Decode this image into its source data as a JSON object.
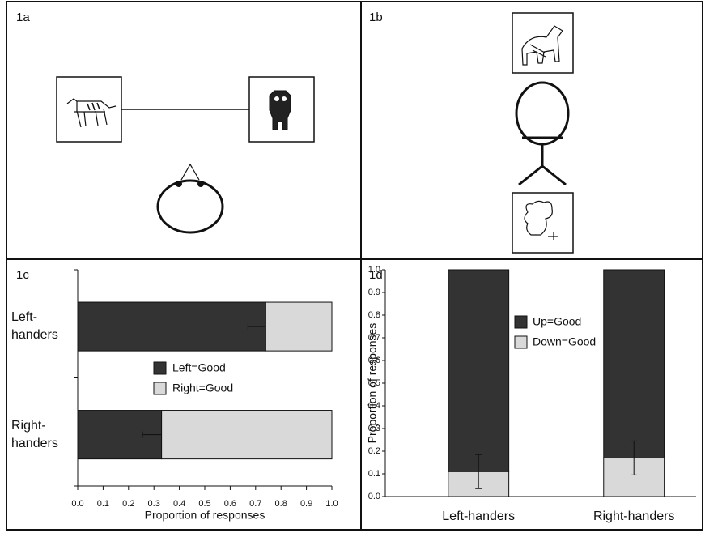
{
  "panel_labels": [
    "1a",
    "1b",
    "1c",
    "1d"
  ],
  "chart_data": [
    {
      "type": "hbar-stacked",
      "xlabel": "Proportion of responses",
      "categories": [
        "Left-handers",
        "Right-handers"
      ],
      "series": [
        {
          "name": "Left=Good",
          "color": "#333333",
          "values": [
            0.74,
            0.33
          ],
          "errors": [
            0.07,
            0.075
          ]
        },
        {
          "name": "Right=Good",
          "color": "#d9d9d9",
          "values": [
            0.26,
            0.67
          ]
        }
      ],
      "xlim": [
        0,
        1
      ],
      "xticks": [
        {
          "value": 0,
          "label": "0.0"
        },
        0.1,
        0.2,
        0.3,
        0.4,
        0.5,
        0.6,
        0.7,
        0.8,
        0.9,
        {
          "value": 1,
          "label": "1.0"
        }
      ]
    },
    {
      "type": "bar-stacked",
      "ylabel": "Proportion of responses",
      "categories": [
        "Left-handers",
        "Right-handers"
      ],
      "series": [
        {
          "name": "Down=Good",
          "color": "#d9d9d9",
          "values": [
            0.11,
            0.17
          ],
          "errors": [
            0.075,
            0.075
          ]
        },
        {
          "name": "Up=Good",
          "color": "#333333",
          "values": [
            0.89,
            0.83
          ]
        }
      ],
      "ylim": [
        0,
        1
      ],
      "yticks": [
        {
          "value": 0,
          "label": "0.0"
        },
        0.1,
        0.2,
        0.3,
        0.4,
        0.5,
        0.6,
        0.7,
        0.8,
        0.9,
        {
          "value": 1,
          "label": "1.0"
        }
      ]
    }
  ]
}
